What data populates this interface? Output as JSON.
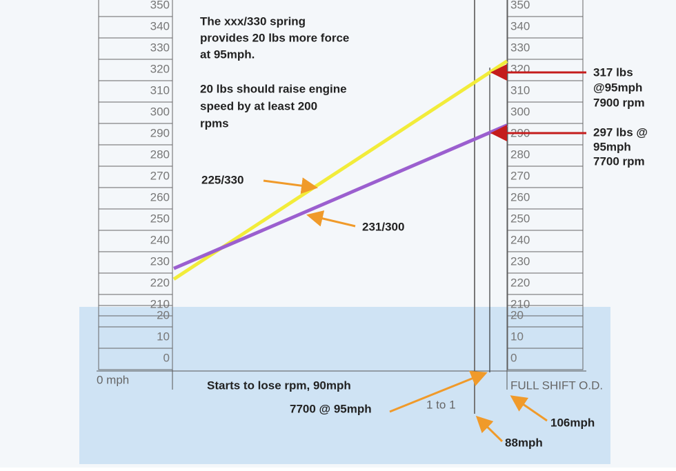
{
  "scales": {
    "upper": [
      350,
      340,
      330,
      320,
      310,
      300,
      290,
      280,
      270,
      260,
      250,
      240,
      230,
      220,
      210
    ],
    "lower": [
      20,
      10,
      0
    ]
  },
  "lines": [
    {
      "label": "225/330",
      "color": "#f2ec3a",
      "values": [
        222,
        324
      ]
    },
    {
      "label": "231/300",
      "color": "#9b5fcf",
      "values": [
        227,
        294
      ]
    }
  ],
  "note": [
    "The xxx/330 spring",
    "provides 20 lbs more force",
    "at 95mph.",
    "20 lbs should raise engine",
    "speed by at least 200",
    "rpms"
  ],
  "callouts": {
    "upper": [
      "317 lbs",
      "@95mph",
      "7900 rpm"
    ],
    "lower": [
      "297 lbs @",
      "95mph",
      "7700 rpm"
    ]
  },
  "axis": {
    "start": "0 mph",
    "lose": "Starts to lose rpm, 90mph",
    "rpm": "7700 @ 95mph",
    "ratio": "1 to 1",
    "shift": "FULL SHIFT O.D.",
    "shift_speed": "106mph",
    "lockup_speed": "88mph"
  }
}
